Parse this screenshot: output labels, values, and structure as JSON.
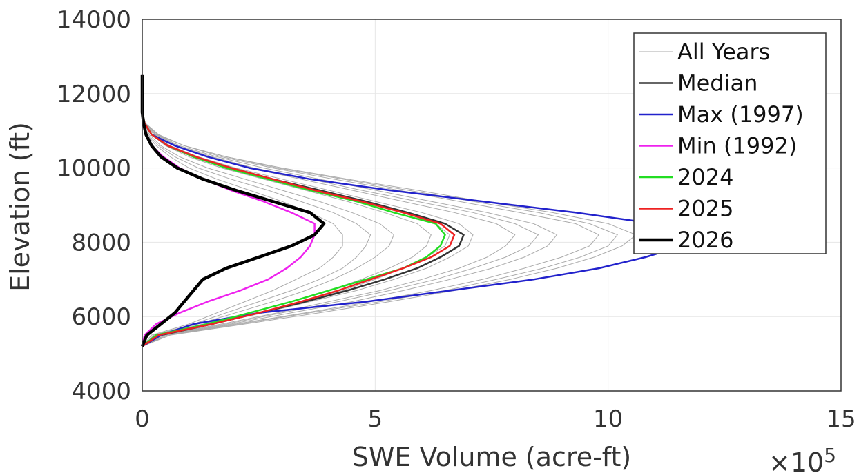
{
  "chart_data": {
    "type": "line",
    "title": "",
    "xlabel": "SWE Volume (acre-ft)",
    "ylabel": "Elevation (ft)",
    "x_multiplier": "×10",
    "x_multiplier_exp": "5",
    "xlim": [
      0,
      15
    ],
    "ylim": [
      4000,
      14000
    ],
    "xticks": [
      "0",
      "5",
      "10",
      "15"
    ],
    "yticks": [
      "4000",
      "6000",
      "8000",
      "10000",
      "12000",
      "14000"
    ],
    "grid": true,
    "legend_position": "top-right",
    "colors": {
      "all_years": "#aaaaaa",
      "median": "#333333",
      "max": "#2222cc",
      "min": "#ee22ee",
      "y2024": "#22dd22",
      "y2025": "#ee2222",
      "y2026": "#000000"
    },
    "y_elev": [
      5200,
      5500,
      5800,
      6100,
      6400,
      6700,
      7000,
      7300,
      7600,
      7900,
      8200,
      8500,
      8800,
      9100,
      9400,
      9700,
      10000,
      10300,
      10600,
      10900,
      11200,
      11500,
      12000,
      12500
    ],
    "background_series": [
      [
        0,
        0.2,
        1.0,
        1.6,
        2.2,
        2.8,
        3.3,
        3.8,
        4.1,
        4.3,
        4.3,
        4.1,
        3.6,
        3.0,
        2.3,
        1.6,
        1.0,
        0.6,
        0.3,
        0.1,
        0.03,
        0,
        0,
        0
      ],
      [
        0,
        0.3,
        1.2,
        2.0,
        2.8,
        3.5,
        4.1,
        4.6,
        5.0,
        5.3,
        5.4,
        5.1,
        4.5,
        3.8,
        3.0,
        2.2,
        1.4,
        0.8,
        0.4,
        0.15,
        0.05,
        0,
        0,
        0
      ],
      [
        0,
        0.3,
        1.3,
        2.3,
        3.2,
        4.0,
        4.7,
        5.3,
        5.8,
        6.1,
        6.2,
        5.9,
        5.2,
        4.4,
        3.5,
        2.6,
        1.7,
        1.0,
        0.5,
        0.2,
        0.05,
        0,
        0,
        0
      ],
      [
        0,
        0.4,
        1.5,
        2.6,
        3.6,
        4.6,
        5.4,
        6.1,
        6.6,
        7.0,
        7.1,
        6.8,
        6.0,
        5.0,
        4.0,
        3.0,
        2.0,
        1.2,
        0.6,
        0.2,
        0.05,
        0,
        0,
        0
      ],
      [
        0,
        0.4,
        1.7,
        2.9,
        4.0,
        5.1,
        6.0,
        6.8,
        7.4,
        7.8,
        8.0,
        7.6,
        6.7,
        5.6,
        4.5,
        3.4,
        2.3,
        1.4,
        0.7,
        0.25,
        0.05,
        0,
        0,
        0
      ],
      [
        0,
        0.5,
        1.9,
        3.2,
        4.5,
        5.6,
        6.6,
        7.5,
        8.2,
        8.7,
        8.9,
        8.4,
        7.4,
        6.2,
        5.0,
        3.8,
        2.6,
        1.6,
        0.8,
        0.3,
        0.06,
        0,
        0,
        0
      ],
      [
        0,
        0.5,
        2.0,
        3.5,
        4.9,
        6.2,
        7.3,
        8.2,
        9.0,
        9.6,
        9.8,
        9.3,
        8.1,
        6.8,
        5.5,
        4.1,
        2.8,
        1.7,
        0.9,
        0.3,
        0.06,
        0,
        0,
        0
      ],
      [
        0,
        0.6,
        2.2,
        3.8,
        5.3,
        6.7,
        7.9,
        8.9,
        9.7,
        10.3,
        10.6,
        10.0,
        8.8,
        7.3,
        5.9,
        4.4,
        3.0,
        1.8,
        0.9,
        0.35,
        0.07,
        0,
        0,
        0
      ],
      [
        0,
        0.35,
        1.4,
        2.5,
        3.5,
        4.3,
        5.0,
        5.6,
        6.1,
        6.5,
        6.6,
        6.3,
        5.6,
        4.8,
        3.8,
        2.8,
        1.9,
        1.1,
        0.55,
        0.2,
        0.05,
        0,
        0,
        0
      ],
      [
        0,
        0.45,
        1.8,
        3.0,
        4.2,
        5.3,
        6.3,
        7.1,
        7.8,
        8.3,
        8.5,
        8.0,
        7.1,
        5.9,
        4.7,
        3.6,
        2.4,
        1.5,
        0.75,
        0.28,
        0.06,
        0,
        0,
        0
      ],
      [
        0,
        0.25,
        1.1,
        1.8,
        2.5,
        3.2,
        3.8,
        4.3,
        4.6,
        4.8,
        4.9,
        4.6,
        4.1,
        3.4,
        2.7,
        1.9,
        1.2,
        0.7,
        0.35,
        0.12,
        0.03,
        0,
        0,
        0
      ],
      [
        0,
        0.55,
        2.1,
        3.6,
        5.1,
        6.5,
        7.6,
        8.6,
        9.4,
        10.0,
        10.2,
        9.6,
        8.5,
        7.1,
        5.7,
        4.3,
        2.9,
        1.8,
        0.9,
        0.33,
        0.07,
        0,
        0,
        0
      ]
    ],
    "series": [
      {
        "name": "Median",
        "color_key": "median",
        "values": [
          0,
          0.4,
          1.5,
          2.5,
          3.5,
          4.4,
          5.2,
          5.9,
          6.4,
          6.8,
          6.9,
          6.5,
          5.7,
          4.8,
          3.8,
          2.8,
          1.9,
          1.1,
          0.55,
          0.2,
          0.05,
          0,
          0,
          0
        ]
      },
      {
        "name": "Max (1997)",
        "color_key": "max",
        "values": [
          0,
          0.4,
          1.1,
          2.5,
          4.8,
          6.6,
          8.4,
          9.8,
          10.8,
          11.6,
          12.0,
          11.0,
          9.3,
          7.3,
          5.3,
          3.6,
          2.3,
          1.4,
          0.7,
          0.2,
          0.05,
          0,
          0,
          0
        ]
      },
      {
        "name": "Min (1992)",
        "color_key": "min",
        "values": [
          0,
          0.05,
          0.3,
          0.8,
          1.4,
          2.1,
          2.7,
          3.1,
          3.4,
          3.6,
          3.7,
          3.7,
          3.2,
          2.6,
          1.9,
          1.3,
          0.8,
          0.45,
          0.2,
          0.07,
          0.02,
          0.01,
          0.01,
          0
        ]
      },
      {
        "name": "2024",
        "color_key": "y2024",
        "values": [
          0,
          0.3,
          1.4,
          2.3,
          3.2,
          4.0,
          4.8,
          5.6,
          6.1,
          6.4,
          6.5,
          6.3,
          5.4,
          4.6,
          3.6,
          2.7,
          1.8,
          1.1,
          0.55,
          0.2,
          0.05,
          0,
          0,
          0
        ]
      },
      {
        "name": "2025",
        "color_key": "y2025",
        "values": [
          0,
          0.35,
          1.5,
          2.5,
          3.4,
          4.2,
          4.9,
          5.6,
          6.2,
          6.6,
          6.7,
          6.4,
          5.6,
          4.7,
          3.7,
          2.8,
          1.9,
          1.15,
          0.55,
          0.2,
          0.05,
          0,
          0,
          0
        ]
      },
      {
        "name": "2026",
        "color_key": "y2026",
        "values": [
          0,
          0.1,
          0.4,
          0.7,
          0.9,
          1.1,
          1.3,
          1.8,
          2.5,
          3.2,
          3.7,
          3.9,
          3.6,
          2.8,
          2.0,
          1.3,
          0.75,
          0.4,
          0.2,
          0.08,
          0.03,
          0,
          0,
          0
        ]
      }
    ],
    "legend": [
      {
        "label": "All Years",
        "color_key": "all_years"
      },
      {
        "label": "Median",
        "color_key": "median"
      },
      {
        "label": "Max (1997)",
        "color_key": "max"
      },
      {
        "label": "Min (1992)",
        "color_key": "min"
      },
      {
        "label": "2024",
        "color_key": "y2024"
      },
      {
        "label": "2025",
        "color_key": "y2025"
      },
      {
        "label": "2026",
        "color_key": "y2026"
      }
    ]
  }
}
